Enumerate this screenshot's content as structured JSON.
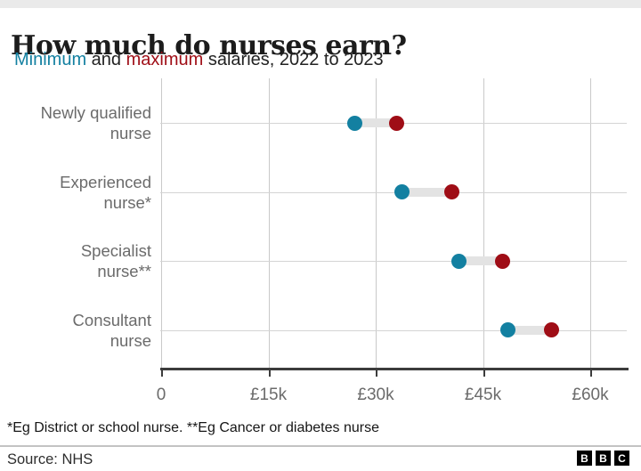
{
  "title": "How much do nurses earn?",
  "subtitle": {
    "min_word": "Minimum",
    "and_word": " and ",
    "max_word": "maximum",
    "rest": " salaries, 2022 to 2023"
  },
  "colors": {
    "min": "#1380A1",
    "max": "#9F0D16",
    "connector": "#E3E3E3",
    "grid": "#CCCCCC",
    "axis": "#3C3C3C",
    "muted_text": "#6B6B6B"
  },
  "rows": [
    {
      "label_line1": "Newly qualified",
      "label_line2": "nurse"
    },
    {
      "label_line1": "Experienced",
      "label_line2": "nurse*"
    },
    {
      "label_line1": "Specialist",
      "label_line2": "nurse**"
    },
    {
      "label_line1": "Consultant",
      "label_line2": "nurse"
    }
  ],
  "chart_data": {
    "type": "scatter",
    "subtype": "dumbbell-range",
    "title": "How much do nurses earn?",
    "subtitle": "Minimum and maximum salaries, 2022 to 2023",
    "categories": [
      "Newly qualified nurse",
      "Experienced nurse*",
      "Specialist nurse**",
      "Consultant nurse"
    ],
    "series": [
      {
        "name": "Minimum",
        "color": "#1380A1",
        "values": [
          27100,
          33700,
          41700,
          48500
        ]
      },
      {
        "name": "Maximum",
        "color": "#9F0D16",
        "values": [
          32900,
          40600,
          47700,
          54600
        ]
      }
    ],
    "xlabel": "",
    "ylabel": "",
    "xlim": [
      0,
      60000
    ],
    "x_ticks": [
      {
        "value": 0,
        "label": "0"
      },
      {
        "value": 15000,
        "label": "£15k"
      },
      {
        "value": 30000,
        "label": "£30k"
      },
      {
        "value": 45000,
        "label": "£45k"
      },
      {
        "value": 60000,
        "label": "£60k"
      }
    ],
    "grid": true,
    "legend_position": "inline-in-subtitle"
  },
  "footnote": "*Eg District or school nurse. **Eg Cancer or diabetes nurse",
  "source": "Source: NHS",
  "logo_letters": [
    "B",
    "B",
    "C"
  ]
}
